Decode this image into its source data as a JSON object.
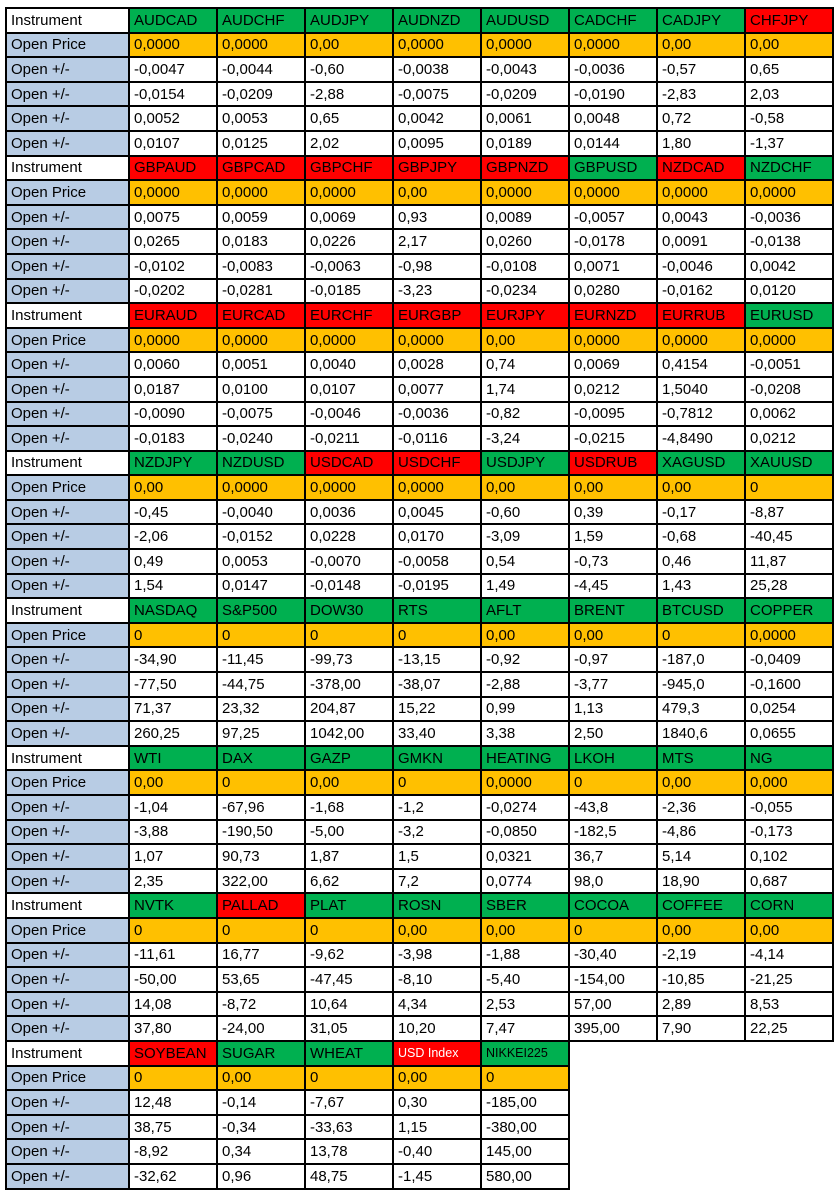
{
  "labels": {
    "instrument": "Instrument",
    "open_price": "Open Price",
    "open_change": "Open +/-"
  },
  "colors": {
    "green": "#00B050",
    "red": "#FF0000",
    "orange": "#FFC000",
    "label_blue": "#B8CCE4",
    "white": "#FFFFFF",
    "black": "#000000",
    "border": "#000000"
  },
  "blocks": [
    {
      "columns": [
        {
          "name": "AUDCAD",
          "color": "green",
          "open_price": "0,0000",
          "changes": [
            "-0,0047",
            "-0,0154",
            "0,0052",
            "0,0107"
          ]
        },
        {
          "name": "AUDCHF",
          "color": "green",
          "open_price": "0,0000",
          "changes": [
            "-0,0044",
            "-0,0209",
            "0,0053",
            "0,0125"
          ]
        },
        {
          "name": "AUDJPY",
          "color": "green",
          "open_price": "0,00",
          "changes": [
            "-0,60",
            "-2,88",
            "0,65",
            "2,02"
          ]
        },
        {
          "name": "AUDNZD",
          "color": "green",
          "open_price": "0,0000",
          "changes": [
            "-0,0038",
            "-0,0075",
            "0,0042",
            "0,0095"
          ]
        },
        {
          "name": "AUDUSD",
          "color": "green",
          "open_price": "0,0000",
          "changes": [
            "-0,0043",
            "-0,0209",
            "0,0061",
            "0,0189"
          ]
        },
        {
          "name": "CADCHF",
          "color": "green",
          "open_price": "0,0000",
          "changes": [
            "-0,0036",
            "-0,0190",
            "0,0048",
            "0,0144"
          ]
        },
        {
          "name": "CADJPY",
          "color": "green",
          "open_price": "0,00",
          "changes": [
            "-0,57",
            "-2,83",
            "0,72",
            "1,80"
          ]
        },
        {
          "name": "CHFJPY",
          "color": "red",
          "open_price": "0,00",
          "changes": [
            "0,65",
            "2,03",
            "-0,58",
            "-1,37"
          ]
        }
      ]
    },
    {
      "columns": [
        {
          "name": "GBPAUD",
          "color": "red",
          "open_price": "0,0000",
          "changes": [
            "0,0075",
            "0,0265",
            "-0,0102",
            "-0,0202"
          ]
        },
        {
          "name": "GBPCAD",
          "color": "red",
          "open_price": "0,0000",
          "changes": [
            "0,0059",
            "0,0183",
            "-0,0083",
            "-0,0281"
          ]
        },
        {
          "name": "GBPCHF",
          "color": "red",
          "open_price": "0,0000",
          "changes": [
            "0,0069",
            "0,0226",
            "-0,0063",
            "-0,0185"
          ]
        },
        {
          "name": "GBPJPY",
          "color": "red",
          "open_price": "0,00",
          "changes": [
            "0,93",
            "2,17",
            "-0,98",
            "-3,23"
          ]
        },
        {
          "name": "GBPNZD",
          "color": "red",
          "open_price": "0,0000",
          "changes": [
            "0,0089",
            "0,0260",
            "-0,0108",
            "-0,0234"
          ]
        },
        {
          "name": "GBPUSD",
          "color": "green",
          "open_price": "0,0000",
          "changes": [
            "-0,0057",
            "-0,0178",
            "0,0071",
            "0,0280"
          ]
        },
        {
          "name": "NZDCAD",
          "color": "red",
          "open_price": "0,0000",
          "changes": [
            "0,0043",
            "0,0091",
            "-0,0046",
            "-0,0162"
          ]
        },
        {
          "name": "NZDCHF",
          "color": "green",
          "open_price": "0,0000",
          "changes": [
            "-0,0036",
            "-0,0138",
            "0,0042",
            "0,0120"
          ]
        }
      ]
    },
    {
      "columns": [
        {
          "name": "EURAUD",
          "color": "red",
          "open_price": "0,0000",
          "changes": [
            "0,0060",
            "0,0187",
            "-0,0090",
            "-0,0183"
          ]
        },
        {
          "name": "EURCAD",
          "color": "red",
          "open_price": "0,0000",
          "changes": [
            "0,0051",
            "0,0100",
            "-0,0075",
            "-0,0240"
          ]
        },
        {
          "name": "EURCHF",
          "color": "red",
          "open_price": "0,0000",
          "changes": [
            "0,0040",
            "0,0107",
            "-0,0046",
            "-0,0211"
          ]
        },
        {
          "name": "EURGBP",
          "color": "red",
          "open_price": "0,0000",
          "changes": [
            "0,0028",
            "0,0077",
            "-0,0036",
            "-0,0116"
          ]
        },
        {
          "name": "EURJPY",
          "color": "red",
          "open_price": "0,00",
          "changes": [
            "0,74",
            "1,74",
            "-0,82",
            "-3,24"
          ]
        },
        {
          "name": "EURNZD",
          "color": "red",
          "open_price": "0,0000",
          "changes": [
            "0,0069",
            "0,0212",
            "-0,0095",
            "-0,0215"
          ]
        },
        {
          "name": "EURRUB",
          "color": "red",
          "open_price": "0,0000",
          "changes": [
            "0,4154",
            "1,5040",
            "-0,7812",
            "-4,8490"
          ]
        },
        {
          "name": "EURUSD",
          "color": "green",
          "open_price": "0,0000",
          "changes": [
            "-0,0051",
            "-0,0208",
            "0,0062",
            "0,0212"
          ]
        }
      ]
    },
    {
      "columns": [
        {
          "name": "NZDJPY",
          "color": "green",
          "open_price": "0,00",
          "changes": [
            "-0,45",
            "-2,06",
            "0,49",
            "1,54"
          ]
        },
        {
          "name": "NZDUSD",
          "color": "green",
          "open_price": "0,0000",
          "changes": [
            "-0,0040",
            "-0,0152",
            "0,0053",
            "0,0147"
          ]
        },
        {
          "name": "USDCAD",
          "color": "red",
          "open_price": "0,0000",
          "changes": [
            "0,0036",
            "0,0228",
            "-0,0070",
            "-0,0148"
          ]
        },
        {
          "name": "USDCHF",
          "color": "red",
          "open_price": "0,0000",
          "changes": [
            "0,0045",
            "0,0170",
            "-0,0058",
            "-0,0195"
          ]
        },
        {
          "name": "USDJPY",
          "color": "green",
          "open_price": "0,00",
          "changes": [
            "-0,60",
            "-3,09",
            "0,54",
            "1,49"
          ]
        },
        {
          "name": "USDRUB",
          "color": "red",
          "open_price": "0,00",
          "changes": [
            "0,39",
            "1,59",
            "-0,73",
            "-4,45"
          ]
        },
        {
          "name": "XAGUSD",
          "color": "green",
          "open_price": "0,00",
          "changes": [
            "-0,17",
            "-0,68",
            "0,46",
            "1,43"
          ]
        },
        {
          "name": "XAUUSD",
          "color": "green",
          "open_price": "0",
          "changes": [
            "-8,87",
            "-40,45",
            "11,87",
            "25,28"
          ]
        }
      ]
    },
    {
      "columns": [
        {
          "name": "NASDAQ",
          "color": "green",
          "open_price": "0",
          "changes": [
            "-34,90",
            "-77,50",
            "71,37",
            "260,25"
          ]
        },
        {
          "name": "S&P500",
          "color": "green",
          "open_price": "0",
          "changes": [
            "-11,45",
            "-44,75",
            "23,32",
            "97,25"
          ]
        },
        {
          "name": "DOW30",
          "color": "green",
          "open_price": "0",
          "changes": [
            "-99,73",
            "-378,00",
            "204,87",
            "1042,00"
          ]
        },
        {
          "name": "RTS",
          "color": "green",
          "open_price": "0",
          "changes": [
            "-13,15",
            "-38,07",
            "15,22",
            "33,40"
          ]
        },
        {
          "name": "AFLT",
          "color": "green",
          "open_price": "0,00",
          "changes": [
            "-0,92",
            "-2,88",
            "0,99",
            "3,38"
          ]
        },
        {
          "name": "BRENT",
          "color": "green",
          "open_price": "0,00",
          "changes": [
            "-0,97",
            "-3,77",
            "1,13",
            "2,50"
          ]
        },
        {
          "name": "BTCUSD",
          "color": "green",
          "open_price": "0",
          "changes": [
            "-187,0",
            "-945,0",
            "479,3",
            "1840,6"
          ]
        },
        {
          "name": "COPPER",
          "color": "green",
          "open_price": "0,0000",
          "changes": [
            "-0,0409",
            "-0,1600",
            "0,0254",
            "0,0655"
          ]
        }
      ]
    },
    {
      "columns": [
        {
          "name": "WTI",
          "color": "green",
          "open_price": "0,00",
          "changes": [
            "-1,04",
            "-3,88",
            "1,07",
            "2,35"
          ]
        },
        {
          "name": "DAX",
          "color": "green",
          "open_price": "0",
          "changes": [
            "-67,96",
            "-190,50",
            "90,73",
            "322,00"
          ]
        },
        {
          "name": "GAZP",
          "color": "green",
          "open_price": "0,00",
          "changes": [
            "-1,68",
            "-5,00",
            "1,87",
            "6,62"
          ]
        },
        {
          "name": "GMKN",
          "color": "green",
          "open_price": "0",
          "changes": [
            "-1,2",
            "-3,2",
            "1,5",
            "7,2"
          ]
        },
        {
          "name": "HEATING",
          "color": "green",
          "open_price": "0,0000",
          "changes": [
            "-0,0274",
            "-0,0850",
            "0,0321",
            "0,0774"
          ]
        },
        {
          "name": "LKOH",
          "color": "green",
          "open_price": "0",
          "changes": [
            "-43,8",
            "-182,5",
            "36,7",
            "98,0"
          ]
        },
        {
          "name": "MTS",
          "color": "green",
          "open_price": "0,00",
          "changes": [
            "-2,36",
            "-4,86",
            "5,14",
            "18,90"
          ]
        },
        {
          "name": "NG",
          "color": "green",
          "open_price": "0,000",
          "changes": [
            "-0,055",
            "-0,173",
            "0,102",
            "0,687"
          ]
        }
      ]
    },
    {
      "columns": [
        {
          "name": "NVTK",
          "color": "green",
          "open_price": "0",
          "changes": [
            "-11,61",
            "-50,00",
            "14,08",
            "37,80"
          ]
        },
        {
          "name": "PALLAD",
          "color": "red",
          "open_price": "0",
          "changes": [
            "16,77",
            "53,65",
            "-8,72",
            "-24,00"
          ]
        },
        {
          "name": "PLAT",
          "color": "green",
          "open_price": "0",
          "changes": [
            "-9,62",
            "-47,45",
            "10,64",
            "31,05"
          ]
        },
        {
          "name": "ROSN",
          "color": "green",
          "open_price": "0,00",
          "changes": [
            "-3,98",
            "-8,10",
            "4,34",
            "10,20"
          ]
        },
        {
          "name": "SBER",
          "color": "green",
          "open_price": "0,00",
          "changes": [
            "-1,88",
            "-5,40",
            "2,53",
            "7,47"
          ]
        },
        {
          "name": "COCOA",
          "color": "green",
          "open_price": "0",
          "changes": [
            "-30,40",
            "-154,00",
            "57,00",
            "395,00"
          ]
        },
        {
          "name": "COFFEE",
          "color": "green",
          "open_price": "0,00",
          "changes": [
            "-2,19",
            "-10,85",
            "2,89",
            "7,90"
          ]
        },
        {
          "name": "CORN",
          "color": "green",
          "open_price": "0,00",
          "changes": [
            "-4,14",
            "-21,25",
            "8,53",
            "22,25"
          ]
        }
      ]
    },
    {
      "columns": [
        {
          "name": "SOYBEAN",
          "color": "red",
          "open_price": "0",
          "changes": [
            "12,48",
            "38,75",
            "-8,92",
            "-32,62"
          ]
        },
        {
          "name": "SUGAR",
          "color": "green",
          "open_price": "0,00",
          "changes": [
            "-0,14",
            "-0,34",
            "0,34",
            "0,96"
          ]
        },
        {
          "name": "WHEAT",
          "color": "green",
          "open_price": "0",
          "changes": [
            "-7,67",
            "-33,63",
            "13,78",
            "48,75"
          ]
        },
        {
          "name": "USD Index",
          "color": "red",
          "text_color": "white",
          "small": true,
          "open_price": "0,00",
          "changes": [
            "0,30",
            "1,15",
            "-0,40",
            "-1,45"
          ]
        },
        {
          "name": "NIKKEI225",
          "color": "green",
          "small": true,
          "open_price": "0",
          "changes": [
            "-185,00",
            "-380,00",
            "145,00",
            "580,00"
          ]
        }
      ]
    }
  ]
}
